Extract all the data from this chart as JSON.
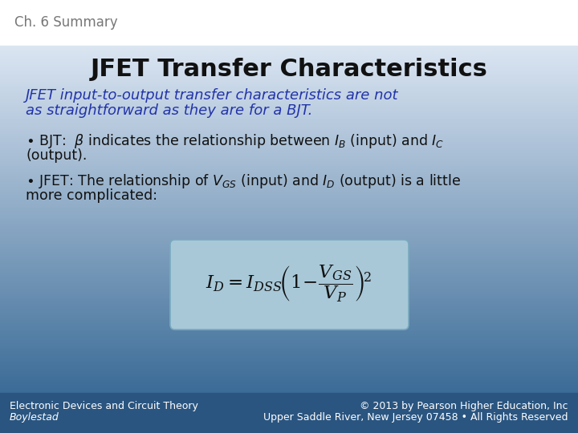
{
  "title_small": "Ch. 6 Summary",
  "title_large": "JFET Transfer Characteristics",
  "italic_line1": "JFET input-to-output transfer characteristics are not",
  "italic_line2": "as straightforward as they are for a BJT.",
  "footer_left1": "Electronic Devices and Circuit Theory",
  "footer_left2": "Boylestad",
  "footer_right1": "© 2013 by Pearson Higher Education, Inc",
  "footer_right2": "Upper Saddle River, New Jersey 07458 • All Rights Reserved",
  "body_color": "#111111",
  "italic_color": "#2233aa",
  "footer_text_color": "#ffffff",
  "formula_bg_color": "#a8c8d8",
  "footer_color": "#2a5580"
}
